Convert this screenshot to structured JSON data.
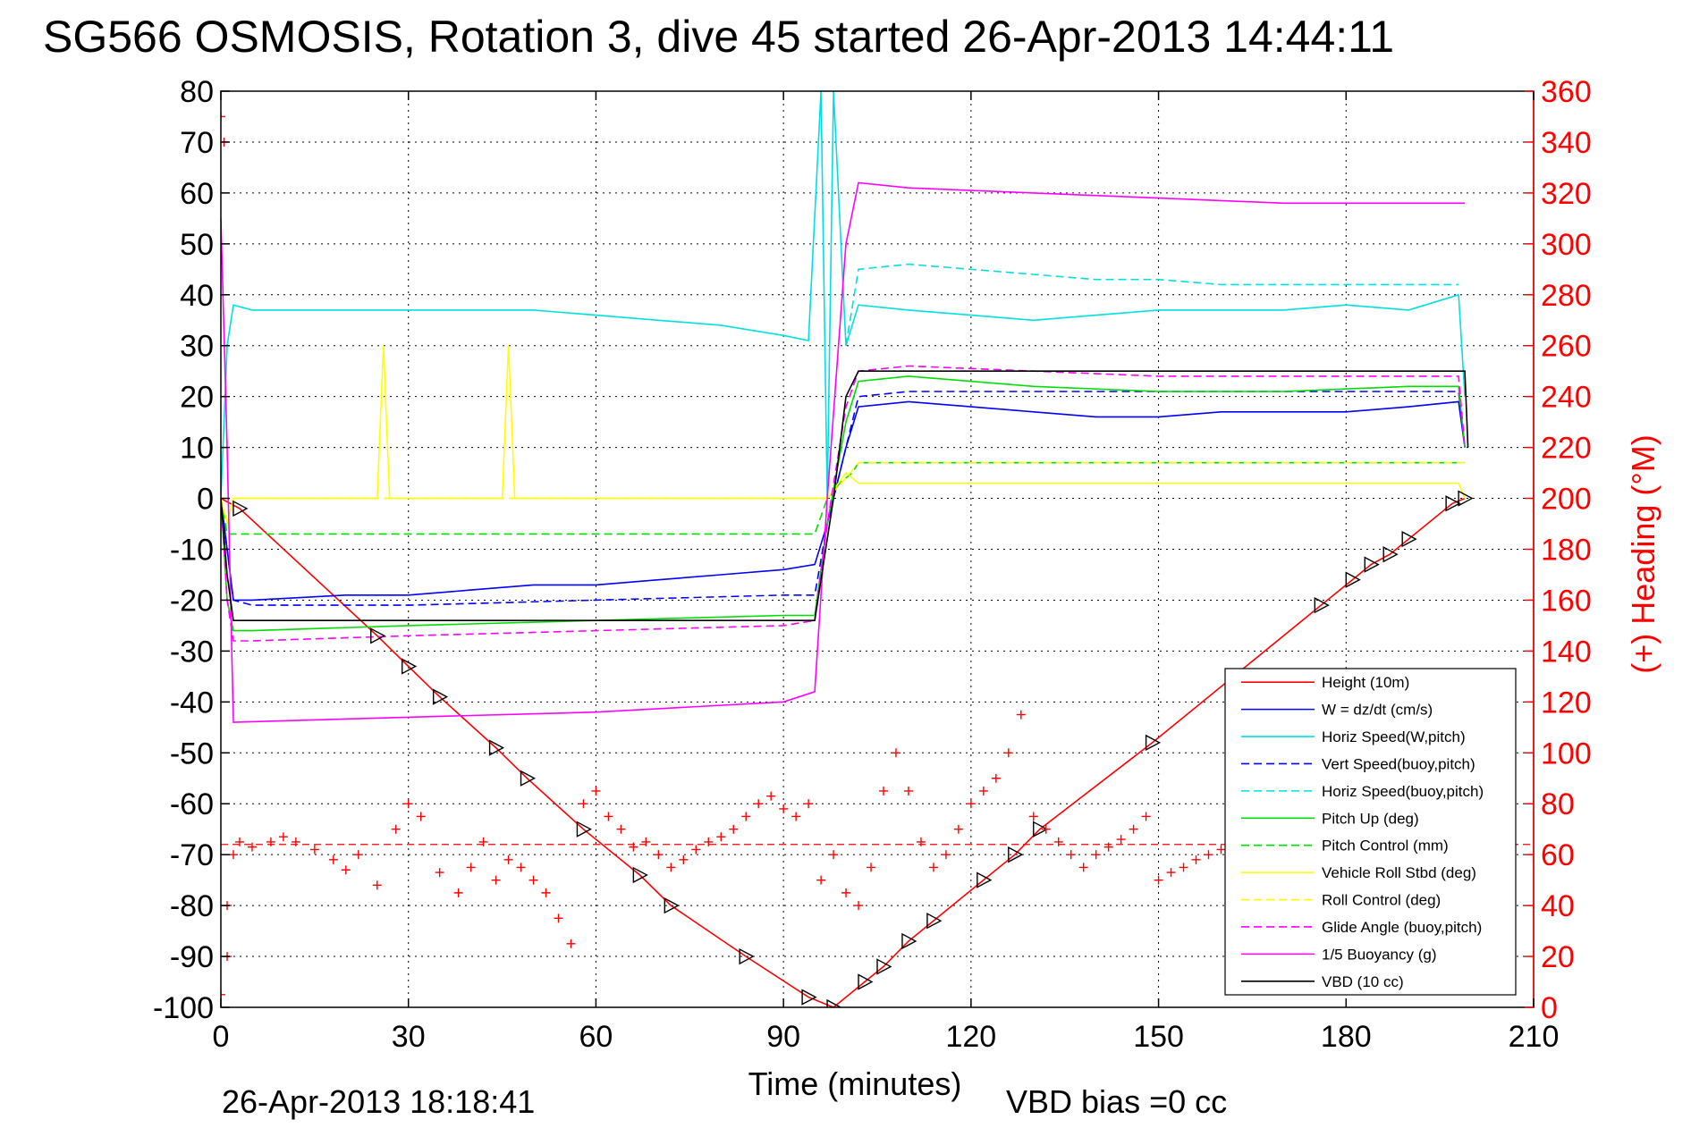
{
  "chart_data": {
    "type": "line",
    "title": "SG566 OSMOSIS, Rotation 3, dive 45 started 26-Apr-2013 14:44:11",
    "xlabel": "Time (minutes)",
    "ylabel_right": "(+) Heading (°M)",
    "xlim": [
      0,
      210
    ],
    "ylim": [
      -100,
      80
    ],
    "ylim_right": [
      0,
      360
    ],
    "x_ticks": [
      "0",
      "30",
      "60",
      "90",
      "120",
      "150",
      "180",
      "210"
    ],
    "y_ticks": [
      "-100",
      "-90",
      "-80",
      "-70",
      "-60",
      "-50",
      "-40",
      "-30",
      "-20",
      "-10",
      "0",
      "10",
      "20",
      "30",
      "40",
      "50",
      "60",
      "70",
      "80"
    ],
    "y_ticks_right": [
      "0",
      "20",
      "40",
      "60",
      "80",
      "100",
      "120",
      "140",
      "160",
      "180",
      "200",
      "220",
      "240",
      "260",
      "280",
      "300",
      "320",
      "340",
      "360"
    ],
    "grid": true,
    "legend_position": "bottom-right",
    "series": [
      {
        "name": "Height (10m)",
        "color": "#ff0000",
        "style": "solid",
        "x": [
          0,
          3,
          25,
          30,
          35,
          44,
          49,
          58,
          67,
          72,
          84,
          94,
          98,
          103,
          106,
          110,
          114,
          122,
          127,
          131,
          149,
          176,
          181,
          184,
          187,
          190,
          197,
          199
        ],
        "y": [
          0,
          -2,
          -27,
          -33,
          -39,
          -49,
          -55,
          -65,
          -74,
          -80,
          -90,
          -98,
          -100,
          -95,
          -92,
          -87,
          -83,
          -75,
          -70,
          -65,
          -48,
          -21,
          -16,
          -13,
          -11,
          -8,
          -1,
          0
        ]
      },
      {
        "name": "W = dz/dt (cm/s)",
        "color": "#0000ff",
        "style": "solid",
        "x": [
          0,
          1,
          2,
          5,
          20,
          30,
          40,
          50,
          60,
          70,
          80,
          90,
          95,
          97,
          100,
          102,
          110,
          120,
          130,
          140,
          150,
          160,
          170,
          180,
          190,
          198,
          199
        ],
        "y": [
          0,
          -10,
          -20,
          -20,
          -19,
          -19,
          -18,
          -17,
          -17,
          -16,
          -15,
          -14,
          -13,
          -5,
          10,
          18,
          19,
          18,
          17,
          16,
          16,
          17,
          17,
          17,
          18,
          19,
          10
        ]
      },
      {
        "name": "Horiz Speed(W,pitch)",
        "color": "#00e0e0",
        "style": "solid",
        "x": [
          0,
          1,
          2,
          5,
          20,
          30,
          40,
          50,
          60,
          70,
          80,
          90,
          94,
          96,
          97,
          98,
          100,
          102,
          110,
          120,
          130,
          140,
          150,
          160,
          170,
          180,
          190,
          198,
          199
        ],
        "y": [
          0,
          30,
          38,
          37,
          37,
          37,
          37,
          37,
          36,
          35,
          34,
          32,
          31,
          80,
          0,
          80,
          30,
          38,
          37,
          36,
          35,
          36,
          37,
          37,
          37,
          38,
          37,
          40,
          20
        ]
      },
      {
        "name": "Vert Speed(buoy,pitch)",
        "color": "#0000ff",
        "style": "dashed",
        "x": [
          0,
          1,
          2,
          5,
          30,
          60,
          90,
          95,
          97,
          100,
          102,
          110,
          130,
          150,
          170,
          190,
          198,
          199
        ],
        "y": [
          0,
          -10,
          -20,
          -21,
          -21,
          -20,
          -19,
          -19,
          -5,
          10,
          20,
          21,
          21,
          21,
          21,
          21,
          21,
          10
        ]
      },
      {
        "name": "Horiz Speed(buoy,pitch)",
        "color": "#00e0e0",
        "style": "dashed",
        "x": [
          100,
          102,
          110,
          120,
          130,
          140,
          150,
          160,
          170,
          180,
          190,
          198
        ],
        "y": [
          30,
          45,
          46,
          45,
          44,
          43,
          43,
          42,
          42,
          42,
          42,
          42
        ]
      },
      {
        "name": "Pitch Up (deg)",
        "color": "#00dd00",
        "style": "solid",
        "x": [
          0,
          1,
          2,
          5,
          30,
          60,
          90,
          95,
          97,
          100,
          102,
          110,
          130,
          150,
          170,
          190,
          198,
          199
        ],
        "y": [
          0,
          -20,
          -26,
          -26,
          -25,
          -24,
          -23,
          -23,
          -5,
          15,
          23,
          24,
          22,
          21,
          21,
          22,
          22,
          10
        ]
      },
      {
        "name": "Pitch Control (mm)",
        "color": "#00dd00",
        "style": "dashed",
        "x": [
          0,
          1,
          2,
          95,
          97,
          99,
          101,
          102,
          199
        ],
        "y": [
          0,
          -7,
          -7,
          -7,
          0,
          3,
          5,
          7,
          7
        ]
      },
      {
        "name": "Vehicle Roll Stbd (deg)",
        "color": "#ffff00",
        "style": "solid",
        "x": [
          0,
          1,
          2,
          25,
          26,
          27,
          45,
          46,
          47,
          95,
          97,
          100,
          102,
          104,
          190,
          198,
          199
        ],
        "y": [
          0,
          -5,
          0,
          0,
          30,
          0,
          0,
          30,
          0,
          0,
          0,
          5,
          3,
          3,
          3,
          3,
          0
        ]
      },
      {
        "name": "Roll Control (deg)",
        "color": "#ffff00",
        "style": "dashed",
        "x": [
          0,
          2,
          95,
          97,
          100,
          102,
          199
        ],
        "y": [
          0,
          0,
          0,
          0,
          4,
          7,
          7
        ]
      },
      {
        "name": "Glide Angle (buoy,pitch)",
        "color": "#ff00ff",
        "style": "dashed",
        "x": [
          0,
          1,
          2,
          5,
          30,
          60,
          90,
          95,
          97,
          100,
          102,
          110,
          130,
          150,
          170,
          190,
          198,
          199
        ],
        "y": [
          0,
          -20,
          -28,
          -28,
          -27,
          -26,
          -25,
          -24,
          -5,
          18,
          25,
          26,
          25,
          24,
          24,
          24,
          24,
          10
        ]
      },
      {
        "name": "1/5 Buoyancy (g)",
        "color": "#ff00ff",
        "style": "solid",
        "x": [
          0,
          1,
          2,
          30,
          60,
          90,
          95,
          97,
          100,
          102,
          110,
          130,
          150,
          170,
          190,
          199
        ],
        "y": [
          55,
          10,
          -44,
          -43,
          -42,
          -40,
          -38,
          0,
          50,
          62,
          61,
          60,
          59,
          58,
          58,
          58
        ]
      },
      {
        "name": "VBD (10 cc)",
        "color": "#000000",
        "style": "solid",
        "x": [
          0,
          1,
          2,
          94,
          95,
          98,
          100,
          102,
          199,
          199.5
        ],
        "y": [
          0,
          -15,
          -24,
          -24,
          -24,
          0,
          20,
          25,
          25,
          10
        ]
      }
    ],
    "heading_points": {
      "color": "#ff0000",
      "x": [
        0,
        0,
        0.5,
        1,
        1,
        2,
        3,
        5,
        8,
        10,
        12,
        15,
        18,
        20,
        22,
        25,
        28,
        30,
        32,
        35,
        38,
        40,
        42,
        44,
        46,
        48,
        50,
        52,
        54,
        56,
        58,
        60,
        62,
        64,
        66,
        68,
        70,
        72,
        74,
        76,
        78,
        80,
        82,
        84,
        86,
        88,
        90,
        92,
        94,
        96,
        98,
        100,
        102,
        104,
        106,
        108,
        110,
        112,
        114,
        116,
        118,
        120,
        122,
        124,
        126,
        128,
        130,
        132,
        134,
        136,
        138,
        140,
        142,
        144,
        146,
        148,
        150,
        152,
        154,
        156,
        158,
        160
      ],
      "y": [
        350,
        5,
        340,
        40,
        20,
        60,
        65,
        63,
        65,
        67,
        65,
        62,
        58,
        54,
        60,
        48,
        70,
        80,
        75,
        53,
        45,
        55,
        65,
        50,
        58,
        55,
        50,
        45,
        35,
        25,
        80,
        85,
        75,
        70,
        63,
        65,
        60,
        55,
        58,
        62,
        65,
        67,
        70,
        75,
        80,
        83,
        78,
        75,
        80,
        50,
        60,
        45,
        40,
        55,
        85,
        100,
        85,
        65,
        55,
        60,
        70,
        80,
        85,
        90,
        100,
        115,
        75,
        70,
        65,
        60,
        55,
        60,
        63,
        66,
        70,
        75,
        50,
        53,
        55,
        58,
        60,
        62
      ]
    },
    "heading_ref": {
      "color": "#ff0000",
      "style": "dashed",
      "y_right": 64
    }
  },
  "footer": {
    "timestamp": "26-Apr-2013 18:18:41",
    "vbd_bias": "VBD bias =0 cc"
  },
  "marker_color": "#000000"
}
